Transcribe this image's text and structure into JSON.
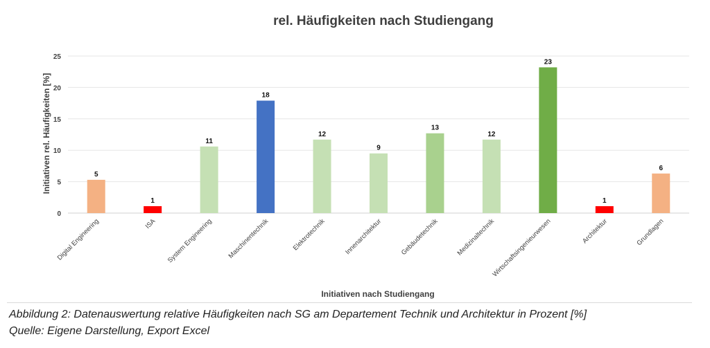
{
  "chart_data": {
    "type": "bar",
    "title": "rel. Häufigkeiten nach Studiengang",
    "xlabel": "Initiativen nach Studiengang",
    "ylabel": "Initiativen rel. Häufigkeiten [%]",
    "ylim": [
      0,
      25
    ],
    "yticks": [
      0,
      5,
      10,
      15,
      20,
      25
    ],
    "grid": true,
    "categories": [
      "Digital Engineering",
      "ISA",
      "System Engineering",
      "Maschinentechnik",
      "Elektrotechnik",
      "Innenarchitektur",
      "Gebäudetechnik",
      "Medizinaltechnik",
      "Wirtschaftsingenieurwesen",
      "Architektur",
      "Grundlagen"
    ],
    "values": [
      5.3,
      1.1,
      10.6,
      17.9,
      11.7,
      9.5,
      12.7,
      11.7,
      23.2,
      1.1,
      6.3
    ],
    "data_labels": [
      "5",
      "1",
      "11",
      "18",
      "12",
      "9",
      "13",
      "12",
      "23",
      "1",
      "6"
    ],
    "colors": [
      "#f4b183",
      "#ff0000",
      "#c5e0b4",
      "#4472c4",
      "#c5e0b4",
      "#c5e0b4",
      "#a9d18e",
      "#c5e0b4",
      "#70ad47",
      "#ff0000",
      "#f4b183"
    ]
  },
  "caption": {
    "line1": "Abbildung 2: Datenauswertung relative Häufigkeiten nach SG am Departement Technik und Architektur in Prozent [%]",
    "line2": "Quelle: Eigene Darstellung, Export Excel"
  }
}
